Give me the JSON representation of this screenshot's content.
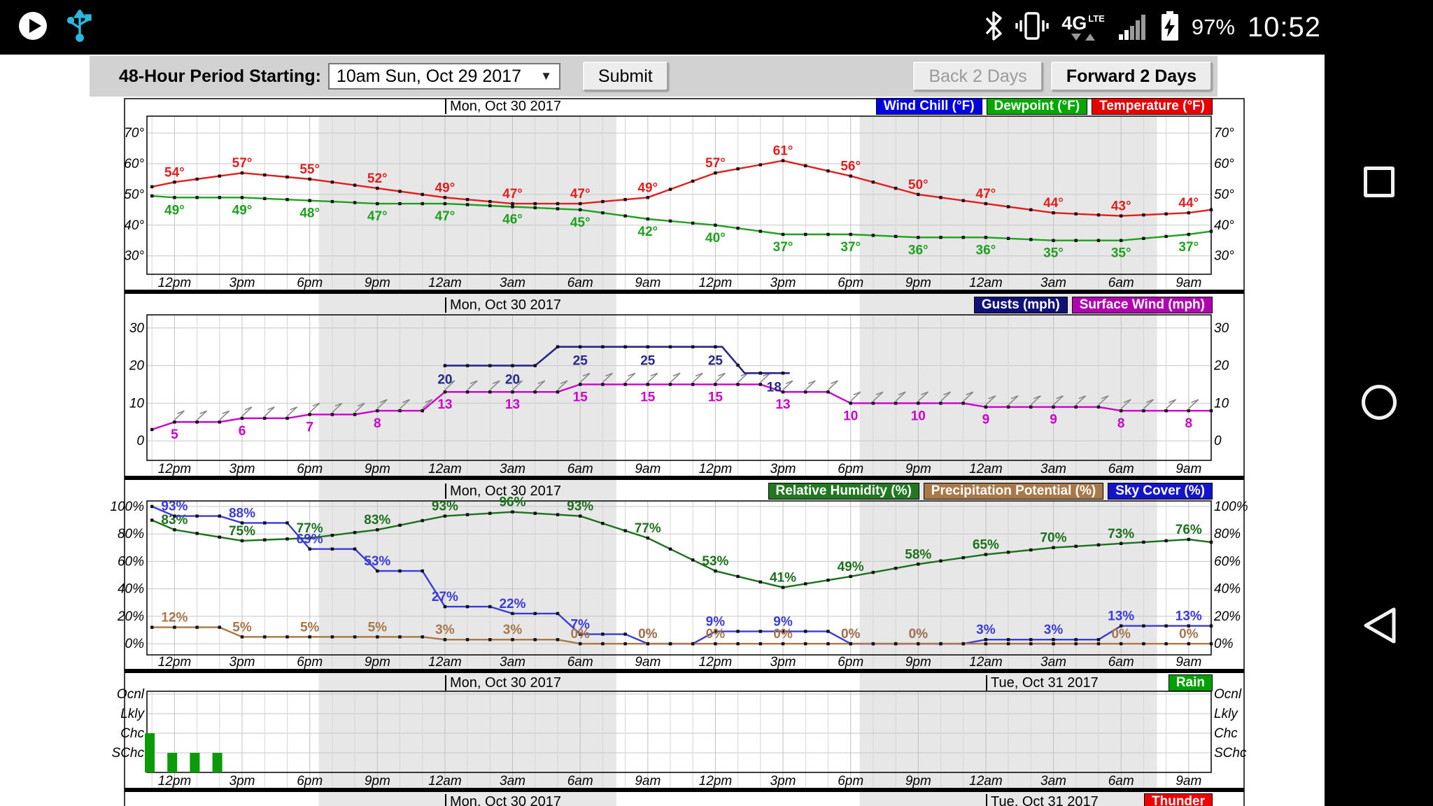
{
  "status_bar": {
    "time": "10:52",
    "battery": "97%",
    "network": "4G",
    "network_sub": "LTE",
    "icons": [
      "play-circle",
      "usb",
      "bluetooth",
      "vibrate",
      "4g-lte",
      "signal",
      "battery-charging"
    ]
  },
  "toolbar": {
    "period_label": "48-Hour Period Starting:",
    "period_value": "10am Sun, Oct 29 2017",
    "dropdown_arrow": "▼",
    "submit_label": "Submit",
    "back_label": "Back 2 Days",
    "forward_label": "Forward 2 Days"
  },
  "nav_bar": {
    "buttons": [
      "recents",
      "home",
      "back"
    ]
  },
  "colors": {
    "night_band": "#e7e7e7",
    "grid_minor": "#d6d6d6",
    "grid_major": "#c0c0c0",
    "temperature": "#e02020",
    "dewpoint": "#1fa11f",
    "gusts": "#28288c",
    "surface_wind": "#cc00cc",
    "humidity": "#1d701d",
    "precip": "#a8784b",
    "sky": "#3b3bd6",
    "rain_bar": "#0a9a0a"
  },
  "x_ticks": [
    "12pm",
    "3pm",
    "6pm",
    "9pm",
    "12am",
    "3am",
    "6am",
    "9am",
    "12pm",
    "3pm",
    "6pm",
    "9pm",
    "12am",
    "3am",
    "6am",
    "9am"
  ],
  "night_bands_t": [
    [
      8.4,
      21.6
    ],
    [
      32.4,
      45.6
    ]
  ],
  "chart_data": [
    {
      "type": "line",
      "name": "temperature",
      "titles": [
        {
          "t": 14,
          "text": "Mon, Oct 30 2017"
        }
      ],
      "legend": [
        {
          "label": "Wind Chill (°F)",
          "bg": "#0000e0"
        },
        {
          "label": "Dewpoint (°F)",
          "bg": "#00a800"
        },
        {
          "label": "Temperature (°F)",
          "bg": "#e80000"
        }
      ],
      "y_ticks": [
        {
          "v": 70,
          "label": "70°"
        },
        {
          "v": 60,
          "label": "60°"
        },
        {
          "v": 50,
          "label": "50°"
        },
        {
          "v": 40,
          "label": "40°"
        },
        {
          "v": 30,
          "label": "30°"
        }
      ],
      "ylim": [
        24,
        75.5
      ],
      "series": [
        {
          "name": "Temperature (°F)",
          "color": "#e02020",
          "mode": "smooth",
          "label_side": "above",
          "start": 51,
          "end": 45,
          "values": [
            54,
            57,
            55,
            52,
            49,
            47,
            47,
            49,
            57,
            61,
            56,
            50,
            47,
            44,
            43,
            44
          ],
          "labels": [
            "54°",
            "57°",
            "55°",
            "52°",
            "49°",
            "47°",
            "47°",
            "49°",
            "57°",
            "61°",
            "56°",
            "50°",
            "47°",
            "44°",
            "43°",
            "44°"
          ]
        },
        {
          "name": "Dewpoint (°F)",
          "color": "#1fa11f",
          "mode": "smooth",
          "label_side": "below",
          "start": 50,
          "end": 38,
          "values": [
            49,
            49,
            48,
            47,
            47,
            46,
            45,
            42,
            40,
            37,
            37,
            36,
            36,
            35,
            35,
            37
          ],
          "labels": [
            "49°",
            "49°",
            "48°",
            "47°",
            "47°",
            "46°",
            "45°",
            "42°",
            "40°",
            "37°",
            "37°",
            "36°",
            "36°",
            "35°",
            "35°",
            "37°"
          ]
        }
      ]
    },
    {
      "type": "line",
      "name": "wind",
      "titles": [
        {
          "t": 14,
          "text": "Mon, Oct 30 2017"
        }
      ],
      "legend": [
        {
          "label": "Gusts (mph)",
          "bg": "#101078"
        },
        {
          "label": "Surface Wind (mph)",
          "bg": "#b000b0"
        }
      ],
      "y_ticks": [
        {
          "v": 30,
          "label": "30"
        },
        {
          "v": 20,
          "label": "20"
        },
        {
          "v": 10,
          "label": "10"
        },
        {
          "v": 0,
          "label": "0"
        }
      ],
      "ylim": [
        -5.2,
        33.5
      ],
      "series": [
        {
          "name": "Surface Wind (mph)",
          "color": "#cc00cc",
          "mode": "step",
          "label_side": "below",
          "start": 3,
          "end": 8,
          "values": [
            5,
            6,
            7,
            8,
            13,
            13,
            15,
            15,
            15,
            13,
            10,
            10,
            9,
            9,
            8,
            8
          ],
          "labels": [
            "5",
            "6",
            "7",
            "8",
            "13",
            "13",
            "15",
            "15",
            "15",
            "13",
            "10",
            "10",
            "9",
            "9",
            "8",
            "8"
          ]
        }
      ],
      "gusts": {
        "name": "Gusts (mph)",
        "color": "#28288c",
        "points": [
          [
            14,
            20
          ],
          [
            18,
            20
          ],
          [
            19,
            25
          ],
          [
            26.3,
            25
          ],
          [
            27.3,
            18
          ],
          [
            29.3,
            18
          ]
        ],
        "labels": [
          [
            14,
            "20"
          ],
          [
            17,
            "20"
          ],
          [
            20,
            "25"
          ],
          [
            23,
            "25"
          ],
          [
            26,
            "25"
          ],
          [
            28.6,
            "18"
          ]
        ]
      },
      "wind_barbs": true
    },
    {
      "type": "line",
      "name": "humidity",
      "titles": [
        {
          "t": 14,
          "text": "Mon, Oct 30 2017"
        }
      ],
      "legend": [
        {
          "label": "Relative Humidity (%)",
          "bg": "#217821"
        },
        {
          "label": "Precipitation Potential (%)",
          "bg": "#a87848"
        },
        {
          "label": "Sky Cover (%)",
          "bg": "#1414cc"
        }
      ],
      "y_ticks": [
        {
          "v": 100,
          "label": "100%"
        },
        {
          "v": 80,
          "label": "80%"
        },
        {
          "v": 60,
          "label": "60%"
        },
        {
          "v": 40,
          "label": "40%"
        },
        {
          "v": 20,
          "label": "20%"
        },
        {
          "v": 0,
          "label": "0%"
        }
      ],
      "ylim": [
        -8.1,
        104
      ],
      "series": [
        {
          "name": "Relative Humidity (%)",
          "color": "#1d701d",
          "mode": "smooth",
          "label_side": "above",
          "start": 97,
          "end": 74,
          "values": [
            83,
            75,
            77,
            83,
            93,
            96,
            93,
            77,
            53,
            41,
            49,
            58,
            65,
            70,
            73,
            76
          ],
          "labels": [
            "83%",
            "75%",
            "77%",
            "83%",
            "93%",
            "96%",
            "93%",
            "77%",
            "53%",
            "41%",
            "49%",
            "58%",
            "65%",
            "70%",
            "73%",
            "76%"
          ]
        },
        {
          "name": "Sky Cover (%)",
          "color": "#3b3bd6",
          "mode": "step",
          "label_side": "above",
          "start": 100,
          "end": 13,
          "values": [
            93,
            88,
            69,
            53,
            27,
            22,
            7,
            0,
            9,
            9,
            0,
            0,
            3,
            3,
            13,
            13
          ],
          "labels": [
            "93%",
            "88%",
            "69%",
            "53%",
            "27%",
            "22%",
            "7%",
            "0%",
            "9%",
            "9%",
            "0%",
            "0%",
            "3%",
            "3%",
            "13%",
            "13%"
          ]
        },
        {
          "name": "Precipitation Potential (%)",
          "color": "#a8784b",
          "mode": "step",
          "label_side": "above",
          "start": 12,
          "end": 0,
          "values": [
            12,
            5,
            5,
            5,
            3,
            3,
            0,
            0,
            0,
            0,
            0,
            0,
            0,
            0,
            0,
            0
          ],
          "labels": [
            "12%",
            "5%",
            "5%",
            "5%",
            "3%",
            "3%",
            "0%",
            "0%",
            "0%",
            "0%",
            "0%",
            "0%",
            "",
            "",
            "0%",
            "0%"
          ]
        }
      ]
    },
    {
      "type": "bar",
      "name": "rain",
      "titles": [
        {
          "t": 14,
          "text": "Mon, Oct 30 2017"
        },
        {
          "t": 38,
          "text": "Tue, Oct 31 2017"
        }
      ],
      "legend": [
        {
          "label": "Rain",
          "bg": "#00a000"
        }
      ],
      "categories": [
        "Ocnl",
        "Lkly",
        "Chc",
        "SChc"
      ],
      "bars": [
        {
          "t": 0.9,
          "level": "Chc"
        },
        {
          "t": 1.9,
          "level": "SChc"
        },
        {
          "t": 2.9,
          "level": "SChc"
        },
        {
          "t": 3.9,
          "level": "SChc"
        }
      ]
    },
    {
      "type": "header-only",
      "name": "thunder",
      "titles": [
        {
          "t": 14,
          "text": "Mon, Oct 30 2017"
        },
        {
          "t": 38,
          "text": "Tue, Oct 31 2017"
        }
      ],
      "legend": [
        {
          "label": "Thunder",
          "bg": "#f00000"
        }
      ]
    }
  ]
}
